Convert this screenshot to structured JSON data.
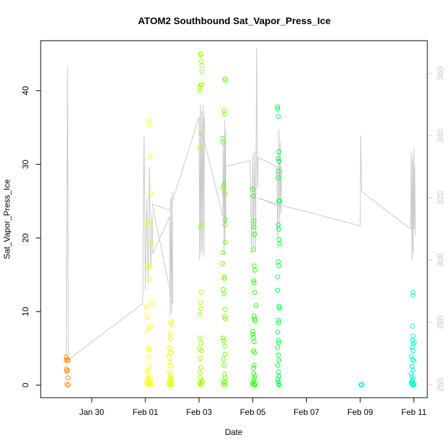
{
  "chart_data": {
    "type": "scatter",
    "title": "ATOM2 Southbound Sat_Vapor_Press_Ice",
    "xlabel": "Date",
    "ylabel": "Sat_Vapor_Press_Ice",
    "x_ticks": [
      "Jan 30",
      "Feb 01",
      "Feb 03",
      "Feb 05",
      "Feb 07",
      "Feb 09",
      "Feb 11"
    ],
    "x_tick_days": [
      30,
      32,
      34,
      36,
      38,
      40,
      42
    ],
    "xlim_days": [
      28.1,
      42.5
    ],
    "y_ticks": [
      0,
      10,
      20,
      30,
      40
    ],
    "ylim": [
      -1.7,
      46.8
    ],
    "y2_ticks": [
      260,
      280,
      300,
      320,
      340,
      360
    ],
    "y2lim": [
      255.8,
      370.5
    ],
    "grid": false,
    "colors": {
      "line": "#c8c8c8",
      "axis": "#000000",
      "right_axis": "#c8c8c8"
    },
    "series": [
      {
        "kind": "points",
        "axis": "left",
        "color": "#ff8c00",
        "points": [
          [
            29.05,
            3.8
          ],
          [
            29.05,
            3.4
          ],
          [
            29.06,
            2.2
          ],
          [
            29.07,
            1.9
          ],
          [
            29.08,
            0.1
          ],
          [
            29.09,
            3.5
          ],
          [
            29.1,
            2.0
          ],
          [
            29.12,
            1.0
          ],
          [
            29.13,
            0.0
          ],
          [
            29.13,
            3.3
          ]
        ]
      },
      {
        "kind": "points",
        "axis": "left",
        "color": "#ffff00",
        "points": [
          [
            32.05,
            10.6
          ],
          [
            32.07,
            9.2
          ],
          [
            32.08,
            16.2
          ],
          [
            32.1,
            22.0
          ],
          [
            32.12,
            15.9
          ],
          [
            32.13,
            4.8
          ],
          [
            32.15,
            36.0
          ],
          [
            32.17,
            35.4
          ],
          [
            32.18,
            31.0
          ],
          [
            32.2,
            26.1
          ],
          [
            32.22,
            19.2
          ],
          [
            32.1,
            7.5
          ],
          [
            32.12,
            5.0
          ],
          [
            32.14,
            3.9
          ],
          [
            32.08,
            2.0
          ],
          [
            32.1,
            1.2
          ],
          [
            32.05,
            0.3
          ],
          [
            32.07,
            0.1
          ],
          [
            32.12,
            0.6
          ],
          [
            32.15,
            0.2
          ],
          [
            32.17,
            0.9
          ],
          [
            32.2,
            0.0
          ],
          [
            32.22,
            0.4
          ],
          [
            32.18,
            14.5
          ],
          [
            32.15,
            22.1
          ],
          [
            32.2,
            8.0
          ],
          [
            32.1,
            0.8
          ],
          [
            32.13,
            0.3
          ],
          [
            32.25,
            11.1
          ],
          [
            32.16,
            2.5
          ]
        ]
      },
      {
        "kind": "points",
        "axis": "left",
        "color": "#e6ff00",
        "points": [
          [
            32.95,
            8.6
          ],
          [
            32.97,
            8.3
          ],
          [
            32.92,
            7.0
          ],
          [
            32.93,
            6.3
          ],
          [
            32.9,
            5.0
          ],
          [
            32.95,
            4.4
          ],
          [
            32.88,
            3.9
          ],
          [
            32.92,
            3.1
          ],
          [
            32.94,
            2.6
          ],
          [
            32.9,
            1.8
          ],
          [
            32.93,
            1.0
          ],
          [
            32.96,
            0.6
          ],
          [
            32.9,
            0.3
          ],
          [
            32.92,
            0.1
          ],
          [
            32.95,
            0.0
          ],
          [
            32.97,
            0.5
          ],
          [
            32.88,
            0.2
          ],
          [
            32.94,
            1.4
          ],
          [
            32.91,
            0.8
          ],
          [
            32.99,
            0.1
          ]
        ]
      },
      {
        "kind": "points",
        "axis": "left",
        "color": "#99ff00",
        "points": [
          [
            34.05,
            45.0
          ],
          [
            34.06,
            44.9
          ],
          [
            34.08,
            44.0
          ],
          [
            34.1,
            43.4
          ],
          [
            34.1,
            42.6
          ],
          [
            34.05,
            40.8
          ],
          [
            34.02,
            40.5
          ],
          [
            34.03,
            39.9
          ],
          [
            34.1,
            40.8
          ],
          [
            34.08,
            34.2
          ],
          [
            34.03,
            32.3
          ],
          [
            34.1,
            21.8
          ],
          [
            34.05,
            21.5
          ],
          [
            34.07,
            12.6
          ],
          [
            34.05,
            11.2
          ],
          [
            34.03,
            9.6
          ],
          [
            34.08,
            10.4
          ],
          [
            34.03,
            6.4
          ],
          [
            34.07,
            5.7
          ],
          [
            34.02,
            4.9
          ],
          [
            34.09,
            4.7
          ],
          [
            34.05,
            3.6
          ],
          [
            34.07,
            2.4
          ],
          [
            34.03,
            1.7
          ],
          [
            34.05,
            1.0
          ],
          [
            34.1,
            0.6
          ],
          [
            34.05,
            0.3
          ],
          [
            34.08,
            0.0
          ],
          [
            34.12,
            0.4
          ],
          [
            34.03,
            0.2
          ]
        ]
      },
      {
        "kind": "points",
        "axis": "left",
        "color": "#66ff00",
        "points": [
          [
            34.88,
            33.5
          ],
          [
            34.9,
            33.0
          ],
          [
            34.93,
            37.3
          ],
          [
            34.95,
            36.8
          ],
          [
            34.97,
            41.6
          ],
          [
            34.98,
            41.4
          ],
          [
            34.9,
            26.8
          ],
          [
            34.93,
            27.3
          ],
          [
            34.95,
            26.0
          ],
          [
            34.97,
            22.5
          ],
          [
            34.97,
            21.8
          ],
          [
            34.98,
            19.4
          ],
          [
            34.9,
            18.0
          ],
          [
            34.88,
            16.5
          ],
          [
            34.93,
            14.7
          ],
          [
            34.95,
            14.5
          ],
          [
            34.9,
            13.0
          ],
          [
            34.93,
            12.4
          ],
          [
            34.97,
            10.3
          ],
          [
            34.95,
            9.3
          ],
          [
            34.98,
            9.0
          ],
          [
            34.9,
            6.4
          ],
          [
            34.93,
            6.0
          ],
          [
            34.95,
            5.3
          ],
          [
            34.97,
            4.2
          ],
          [
            34.9,
            3.5
          ],
          [
            34.93,
            2.7
          ],
          [
            34.95,
            1.5
          ],
          [
            34.97,
            1.0
          ],
          [
            34.9,
            0.5
          ],
          [
            34.93,
            0.2
          ],
          [
            34.95,
            0.0
          ],
          [
            34.98,
            0.4
          ]
        ]
      },
      {
        "kind": "points",
        "axis": "left",
        "color": "#22ff00",
        "points": [
          [
            36.0,
            26.6
          ],
          [
            36.02,
            25.7
          ],
          [
            36.05,
            22.3
          ],
          [
            36.05,
            21.5
          ],
          [
            36.07,
            20.5
          ],
          [
            36.03,
            18.4
          ],
          [
            36.05,
            16.2
          ],
          [
            36.08,
            15.6
          ],
          [
            36.03,
            14.2
          ],
          [
            36.05,
            13.9
          ],
          [
            36.07,
            12.6
          ],
          [
            36.12,
            10.8
          ],
          [
            36.05,
            9.4
          ],
          [
            36.07,
            9.0
          ],
          [
            36.08,
            8.7
          ],
          [
            36.0,
            7.3
          ],
          [
            36.03,
            6.5
          ],
          [
            36.05,
            5.9
          ],
          [
            36.02,
            4.7
          ],
          [
            36.07,
            4.4
          ],
          [
            36.05,
            2.7
          ],
          [
            36.02,
            2.3
          ],
          [
            36.03,
            1.6
          ],
          [
            36.07,
            1.2
          ],
          [
            36.05,
            0.9
          ],
          [
            36.03,
            0.5
          ],
          [
            36.05,
            0.1
          ],
          [
            36.07,
            0.0
          ],
          [
            35.98,
            0.2
          ],
          [
            36.1,
            0.3
          ],
          [
            36.0,
            6.9
          ]
        ]
      },
      {
        "kind": "points",
        "axis": "left",
        "color": "#00ff44",
        "points": [
          [
            36.92,
            37.8
          ],
          [
            36.93,
            37.5
          ],
          [
            36.95,
            36.5
          ],
          [
            36.97,
            31.7
          ],
          [
            36.95,
            30.8
          ],
          [
            36.97,
            30.4
          ],
          [
            36.95,
            29.1
          ],
          [
            36.95,
            28.2
          ],
          [
            36.97,
            25.0
          ],
          [
            37.0,
            25.0
          ],
          [
            36.95,
            21.8
          ],
          [
            36.97,
            21.2
          ],
          [
            36.98,
            19.8
          ],
          [
            37.0,
            19.2
          ],
          [
            36.95,
            16.8
          ],
          [
            36.97,
            16.2
          ],
          [
            36.93,
            14.7
          ],
          [
            36.92,
            12.9
          ],
          [
            36.97,
            10.7
          ],
          [
            37.0,
            10.4
          ],
          [
            36.95,
            8.8
          ],
          [
            36.97,
            8.5
          ],
          [
            36.93,
            7.2
          ],
          [
            36.95,
            6.1
          ],
          [
            36.97,
            5.8
          ],
          [
            36.93,
            5.1
          ],
          [
            36.95,
            4.1
          ],
          [
            36.97,
            3.4
          ],
          [
            36.93,
            2.7
          ],
          [
            36.95,
            1.8
          ],
          [
            36.97,
            1.2
          ],
          [
            36.93,
            0.8
          ],
          [
            36.95,
            0.4
          ],
          [
            36.97,
            0.1
          ],
          [
            36.98,
            0.0
          ]
        ]
      },
      {
        "kind": "points",
        "axis": "left",
        "color": "#00ffb4",
        "points": [
          [
            40.03,
            0.05
          ],
          [
            40.06,
            0.08
          ],
          [
            40.05,
            0.02
          ]
        ]
      },
      {
        "kind": "points",
        "axis": "left",
        "color": "#00ffcc",
        "points": [
          [
            41.97,
            12.6
          ],
          [
            41.97,
            12.2
          ],
          [
            41.95,
            8.0
          ],
          [
            41.97,
            6.7
          ],
          [
            41.95,
            6.1
          ],
          [
            42.02,
            5.8
          ],
          [
            41.99,
            5.6
          ],
          [
            41.93,
            5.1
          ],
          [
            41.97,
            4.7
          ],
          [
            41.9,
            3.9
          ],
          [
            41.95,
            3.5
          ],
          [
            42.0,
            3.3
          ],
          [
            41.93,
            2.6
          ],
          [
            41.97,
            2.0
          ],
          [
            41.9,
            1.6
          ],
          [
            41.93,
            1.2
          ],
          [
            41.97,
            0.9
          ],
          [
            41.95,
            0.6
          ],
          [
            41.9,
            0.3
          ],
          [
            41.93,
            0.2
          ],
          [
            41.97,
            0.1
          ],
          [
            42.0,
            0.0
          ],
          [
            41.95,
            0.0
          ],
          [
            41.92,
            0.4
          ],
          [
            42.01,
            0.2
          ]
        ]
      },
      {
        "kind": "line",
        "axis": "right",
        "color": "#c8c8c8",
        "points": [
          [
            29.05,
            267
          ],
          [
            29.1,
            362
          ],
          [
            29.13,
            268
          ],
          [
            31.9,
            286
          ],
          [
            31.95,
            340
          ],
          [
            32.0,
            290
          ],
          [
            32.05,
            320
          ],
          [
            32.1,
            292
          ],
          [
            32.15,
            330
          ],
          [
            32.2,
            297
          ],
          [
            32.25,
            315
          ],
          [
            32.28,
            302
          ],
          [
            32.9,
            314
          ],
          [
            32.92,
            282
          ],
          [
            32.95,
            320
          ],
          [
            32.98,
            283
          ],
          [
            33.0,
            322
          ],
          [
            33.02,
            286
          ],
          [
            32.25,
            318
          ],
          [
            32.9,
            316
          ],
          [
            34.0,
            346
          ],
          [
            34.02,
            300
          ],
          [
            34.05,
            350
          ],
          [
            34.07,
            302
          ],
          [
            34.1,
            348
          ],
          [
            34.12,
            303
          ],
          [
            34.15,
            350
          ],
          [
            34.18,
            301
          ],
          [
            34.2,
            346
          ],
          [
            34.15,
            340
          ],
          [
            34.88,
            314
          ],
          [
            34.9,
            340
          ],
          [
            34.93,
            302
          ],
          [
            34.95,
            345
          ],
          [
            34.97,
            305
          ],
          [
            34.99,
            342
          ],
          [
            35.0,
            312
          ],
          [
            34.98,
            330
          ],
          [
            35.9,
            332
          ],
          [
            35.95,
            302
          ],
          [
            36.0,
            334
          ],
          [
            36.03,
            303
          ],
          [
            36.07,
            335
          ],
          [
            36.1,
            304
          ],
          [
            36.15,
            368
          ],
          [
            36.17,
            323
          ],
          [
            36.2,
            333
          ],
          [
            36.9,
            330
          ],
          [
            36.93,
            307
          ],
          [
            36.97,
            342
          ],
          [
            37.0,
            310
          ],
          [
            37.02,
            338
          ],
          [
            37.05,
            315
          ],
          [
            37.07,
            330
          ],
          [
            37.05,
            317
          ],
          [
            36.2,
            320
          ],
          [
            36.9,
            318
          ],
          [
            40.0,
            311
          ],
          [
            40.02,
            340
          ],
          [
            40.05,
            322
          ],
          [
            41.88,
            310
          ],
          [
            41.9,
            335
          ],
          [
            41.93,
            300
          ],
          [
            41.95,
            333
          ],
          [
            41.97,
            302
          ],
          [
            42.0,
            336
          ],
          [
            42.02,
            310
          ],
          [
            42.03,
            330
          ],
          [
            42.05,
            308
          ]
        ]
      }
    ]
  }
}
